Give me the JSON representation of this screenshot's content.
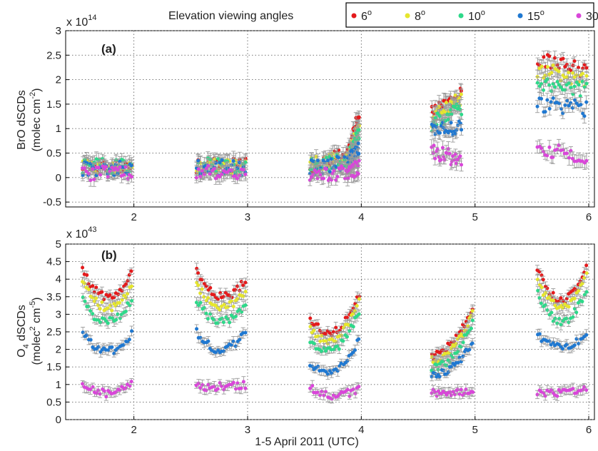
{
  "figure": {
    "legend_title": "Elevation viewing angles",
    "x_axis_label": "1-5 April 2011 (UTC)"
  },
  "chart_data": [
    {
      "type": "scatter",
      "panel_label": "(a)",
      "ylabel": "BrO dSCDs (molec cm^-2)",
      "ylabel_lines": [
        "BrO dSCDs",
        "(molec cm",
        "-2",
        ")"
      ],
      "multiplier": "x 10",
      "multiplier_exp": "14",
      "x_ticks": [
        "2",
        "3",
        "4",
        "5",
        "6"
      ],
      "y_ticks": [
        "-0.5",
        "0",
        "0.5",
        "1",
        "1.5",
        "2",
        "2.5",
        "3"
      ],
      "xlim": [
        1.4,
        6.05
      ],
      "ylim": [
        -0.6,
        3.0
      ],
      "grid": true,
      "legend_position": "top-right",
      "series": [
        {
          "name": "6",
          "color": "#e41a1c",
          "segments": [
            {
              "x_start": 1.55,
              "x_end": 1.98,
              "y_start": 0.25,
              "y_end": 0.25
            },
            {
              "x_start": 2.55,
              "x_end": 2.98,
              "y_start": 0.25,
              "y_end": 0.25
            },
            {
              "x_start": 3.55,
              "x_end": 3.88,
              "y_start": 0.25,
              "y_end": 0.45
            },
            {
              "x_start": 3.88,
              "x_end": 3.98,
              "y_start": 0.45,
              "y_end": 1.3
            },
            {
              "x_start": 4.62,
              "x_end": 4.88,
              "y_start": 1.3,
              "y_end": 1.7
            },
            {
              "x_start": 5.55,
              "x_end": 5.98,
              "y_start": 2.4,
              "y_end": 2.2
            }
          ]
        },
        {
          "name": "8",
          "color": "#e6e62e",
          "segments": [
            {
              "x_start": 1.55,
              "x_end": 1.98,
              "y_start": 0.25,
              "y_end": 0.2
            },
            {
              "x_start": 2.55,
              "x_end": 2.98,
              "y_start": 0.25,
              "y_end": 0.2
            },
            {
              "x_start": 3.55,
              "x_end": 3.88,
              "y_start": 0.25,
              "y_end": 0.4
            },
            {
              "x_start": 3.88,
              "x_end": 3.98,
              "y_start": 0.4,
              "y_end": 1.0
            },
            {
              "x_start": 4.62,
              "x_end": 4.88,
              "y_start": 1.2,
              "y_end": 1.6
            },
            {
              "x_start": 5.55,
              "x_end": 5.98,
              "y_start": 2.2,
              "y_end": 2.0
            }
          ]
        },
        {
          "name": "10",
          "color": "#2ed98a",
          "segments": [
            {
              "x_start": 1.55,
              "x_end": 1.98,
              "y_start": 0.25,
              "y_end": 0.2
            },
            {
              "x_start": 2.55,
              "x_end": 2.98,
              "y_start": 0.25,
              "y_end": 0.2
            },
            {
              "x_start": 3.55,
              "x_end": 3.88,
              "y_start": 0.25,
              "y_end": 0.35
            },
            {
              "x_start": 3.88,
              "x_end": 3.98,
              "y_start": 0.35,
              "y_end": 0.9
            },
            {
              "x_start": 4.62,
              "x_end": 4.88,
              "y_start": 1.1,
              "y_end": 1.4
            },
            {
              "x_start": 5.55,
              "x_end": 5.98,
              "y_start": 1.9,
              "y_end": 1.8
            }
          ]
        },
        {
          "name": "15",
          "color": "#1f78d1",
          "segments": [
            {
              "x_start": 1.55,
              "x_end": 1.98,
              "y_start": 0.2,
              "y_end": 0.2
            },
            {
              "x_start": 2.55,
              "x_end": 2.98,
              "y_start": 0.2,
              "y_end": 0.2
            },
            {
              "x_start": 3.55,
              "x_end": 3.88,
              "y_start": 0.2,
              "y_end": 0.3
            },
            {
              "x_start": 3.88,
              "x_end": 3.98,
              "y_start": 0.3,
              "y_end": 0.6
            },
            {
              "x_start": 4.62,
              "x_end": 4.88,
              "y_start": 0.95,
              "y_end": 1.0
            },
            {
              "x_start": 5.55,
              "x_end": 5.98,
              "y_start": 1.5,
              "y_end": 1.4
            }
          ]
        },
        {
          "name": "30",
          "color": "#d946d9",
          "segments": [
            {
              "x_start": 1.55,
              "x_end": 1.98,
              "y_start": 0.1,
              "y_end": 0.05
            },
            {
              "x_start": 2.55,
              "x_end": 2.98,
              "y_start": 0.1,
              "y_end": 0.05
            },
            {
              "x_start": 3.55,
              "x_end": 3.88,
              "y_start": 0.1,
              "y_end": 0.1
            },
            {
              "x_start": 3.88,
              "x_end": 3.98,
              "y_start": 0.1,
              "y_end": 0.2
            },
            {
              "x_start": 4.62,
              "x_end": 4.88,
              "y_start": 0.55,
              "y_end": 0.35
            },
            {
              "x_start": 5.55,
              "x_end": 5.98,
              "y_start": 0.6,
              "y_end": 0.45
            }
          ]
        }
      ]
    },
    {
      "type": "scatter",
      "panel_label": "(b)",
      "ylabel": "O4 dSCDs (molec^2 cm^-5)",
      "ylabel_lines": [
        "O",
        "4",
        " dSCDs",
        "(molec",
        "2",
        " cm",
        "-5",
        ")"
      ],
      "multiplier": "x 10",
      "multiplier_exp": "43",
      "x_ticks": [
        "2",
        "3",
        "4",
        "5",
        "6"
      ],
      "y_ticks": [
        "0",
        "0.5",
        "1",
        "1.5",
        "2",
        "2.5",
        "3",
        "3.5",
        "4",
        "4.5",
        "5"
      ],
      "xlim": [
        1.4,
        6.05
      ],
      "ylim": [
        0,
        5
      ],
      "grid": true,
      "series": [
        {
          "name": "6",
          "color": "#e41a1c",
          "segments": [
            {
              "x_start": 1.55,
              "x_end": 1.98,
              "y_start": 4.3,
              "y_end": 4.2,
              "y_mid": 3.5
            },
            {
              "x_start": 2.55,
              "x_end": 2.98,
              "y_start": 4.2,
              "y_end": 4.0,
              "y_mid": 3.5
            },
            {
              "x_start": 3.55,
              "x_end": 3.98,
              "y_start": 2.9,
              "y_end": 3.6,
              "y_mid": 2.5
            },
            {
              "x_start": 4.62,
              "x_end": 4.98,
              "y_start": 1.8,
              "y_end": 3.2,
              "y_mid": 2.2
            },
            {
              "x_start": 5.55,
              "x_end": 5.98,
              "y_start": 4.3,
              "y_end": 4.4,
              "y_mid": 3.4
            }
          ]
        },
        {
          "name": "8",
          "color": "#e6e62e",
          "segments": [
            {
              "x_start": 1.55,
              "x_end": 1.98,
              "y_start": 3.9,
              "y_end": 3.8,
              "y_mid": 3.2
            },
            {
              "x_start": 2.55,
              "x_end": 2.98,
              "y_start": 3.9,
              "y_end": 3.7,
              "y_mid": 3.2
            },
            {
              "x_start": 3.55,
              "x_end": 3.98,
              "y_start": 2.6,
              "y_end": 3.4,
              "y_mid": 2.3
            },
            {
              "x_start": 4.62,
              "x_end": 4.98,
              "y_start": 1.7,
              "y_end": 3.0,
              "y_mid": 2.0
            },
            {
              "x_start": 5.55,
              "x_end": 5.98,
              "y_start": 4.0,
              "y_end": 4.1,
              "y_mid": 3.2
            }
          ]
        },
        {
          "name": "10",
          "color": "#2ed98a",
          "segments": [
            {
              "x_start": 1.55,
              "x_end": 1.98,
              "y_start": 3.4,
              "y_end": 3.4,
              "y_mid": 2.8
            },
            {
              "x_start": 2.55,
              "x_end": 2.98,
              "y_start": 3.4,
              "y_end": 3.3,
              "y_mid": 2.8
            },
            {
              "x_start": 3.55,
              "x_end": 3.98,
              "y_start": 2.3,
              "y_end": 3.1,
              "y_mid": 2.0
            },
            {
              "x_start": 4.62,
              "x_end": 4.98,
              "y_start": 1.5,
              "y_end": 2.8,
              "y_mid": 1.8
            },
            {
              "x_start": 5.55,
              "x_end": 5.98,
              "y_start": 3.6,
              "y_end": 3.7,
              "y_mid": 2.8
            }
          ]
        },
        {
          "name": "15",
          "color": "#1f78d1",
          "segments": [
            {
              "x_start": 1.55,
              "x_end": 1.98,
              "y_start": 2.5,
              "y_end": 2.45,
              "y_mid": 1.95
            },
            {
              "x_start": 2.55,
              "x_end": 2.98,
              "y_start": 2.5,
              "y_end": 2.5,
              "y_mid": 2.0
            },
            {
              "x_start": 3.55,
              "x_end": 3.98,
              "y_start": 1.6,
              "y_end": 2.3,
              "y_mid": 1.4
            },
            {
              "x_start": 4.62,
              "x_end": 4.98,
              "y_start": 1.3,
              "y_end": 2.2,
              "y_mid": 1.5
            },
            {
              "x_start": 5.55,
              "x_end": 5.98,
              "y_start": 2.45,
              "y_end": 2.45,
              "y_mid": 2.05
            }
          ]
        },
        {
          "name": "30",
          "color": "#d946d9",
          "segments": [
            {
              "x_start": 1.55,
              "x_end": 1.98,
              "y_start": 1.0,
              "y_end": 1.0,
              "y_mid": 0.75
            },
            {
              "x_start": 2.55,
              "x_end": 2.98,
              "y_start": 0.95,
              "y_end": 1.0,
              "y_mid": 0.95
            },
            {
              "x_start": 3.55,
              "x_end": 3.98,
              "y_start": 0.9,
              "y_end": 0.9,
              "y_mid": 0.7
            },
            {
              "x_start": 4.62,
              "x_end": 4.98,
              "y_start": 0.8,
              "y_end": 0.85,
              "y_mid": 0.75
            },
            {
              "x_start": 5.55,
              "x_end": 5.98,
              "y_start": 0.8,
              "y_end": 0.9,
              "y_mid": 0.75
            }
          ]
        }
      ]
    }
  ]
}
